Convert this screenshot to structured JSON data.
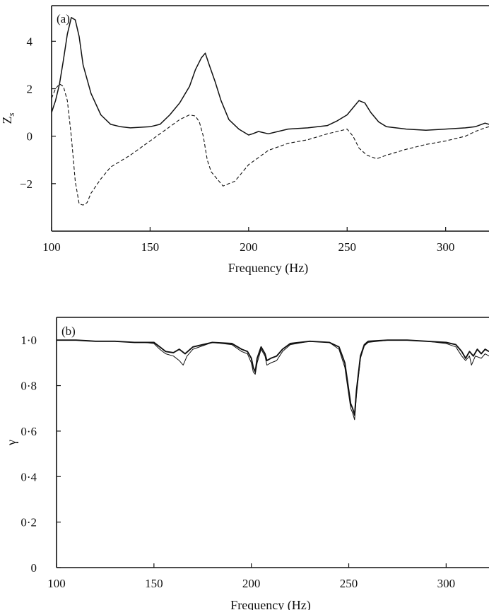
{
  "chart_data": [
    {
      "type": "line",
      "panel_label": "(a)",
      "xlabel": "Frequency (Hz)",
      "ylabel_main": "Z",
      "ylabel_sub": "s",
      "xlim": [
        100,
        322
      ],
      "ylim": [
        -4,
        5.5
      ],
      "xticks": [
        100,
        150,
        200,
        250,
        300
      ],
      "xtick_labels": [
        "100",
        "150",
        "200",
        "250",
        "300"
      ],
      "yticks": [
        -2,
        0,
        2,
        4
      ],
      "ytick_labels": [
        "−2",
        "0",
        "2",
        "4"
      ],
      "grid": false,
      "series": [
        {
          "style": "solid",
          "x": [
            100,
            102,
            104,
            106,
            108,
            110,
            112,
            114,
            116,
            120,
            125,
            130,
            135,
            140,
            150,
            155,
            160,
            165,
            170,
            173,
            176,
            178,
            180,
            183,
            186,
            190,
            195,
            200,
            202,
            205,
            210,
            220,
            230,
            240,
            245,
            250,
            253,
            256,
            259,
            262,
            266,
            270,
            280,
            290,
            300,
            310,
            315,
            320,
            322
          ],
          "y": [
            1.0,
            1.5,
            2.2,
            3.2,
            4.3,
            5.0,
            4.9,
            4.2,
            3.0,
            1.8,
            0.9,
            0.5,
            0.4,
            0.35,
            0.4,
            0.5,
            0.9,
            1.4,
            2.1,
            2.8,
            3.3,
            3.5,
            3.0,
            2.3,
            1.5,
            0.7,
            0.3,
            0.05,
            0.1,
            0.2,
            0.1,
            0.3,
            0.35,
            0.45,
            0.65,
            0.9,
            1.2,
            1.5,
            1.4,
            1.0,
            0.6,
            0.4,
            0.3,
            0.25,
            0.3,
            0.35,
            0.4,
            0.55,
            0.5
          ]
        },
        {
          "style": "dashed",
          "x": [
            100,
            102,
            104,
            106,
            108,
            110,
            112,
            114,
            116,
            118,
            120,
            125,
            130,
            140,
            150,
            160,
            165,
            170,
            173,
            175,
            177,
            179,
            181,
            184,
            187,
            190,
            193,
            196,
            200,
            205,
            210,
            220,
            230,
            240,
            245,
            250,
            253,
            256,
            260,
            265,
            270,
            280,
            290,
            300,
            310,
            315,
            320,
            322
          ],
          "y": [
            1.6,
            2.0,
            2.2,
            2.1,
            1.5,
            0.0,
            -1.9,
            -2.85,
            -2.9,
            -2.8,
            -2.4,
            -1.8,
            -1.3,
            -0.8,
            -0.2,
            0.4,
            0.7,
            0.9,
            0.85,
            0.6,
            0.0,
            -1.0,
            -1.5,
            -1.8,
            -2.1,
            -2.0,
            -1.9,
            -1.6,
            -1.2,
            -0.9,
            -0.6,
            -0.3,
            -0.15,
            0.1,
            0.2,
            0.3,
            0.0,
            -0.5,
            -0.8,
            -0.95,
            -0.8,
            -0.55,
            -0.35,
            -0.2,
            0.0,
            0.2,
            0.35,
            0.4
          ]
        }
      ]
    },
    {
      "type": "line",
      "panel_label": "(b)",
      "xlabel": "Frequency (Hz)",
      "ylabel": "γ",
      "xlim": [
        100,
        322
      ],
      "ylim": [
        0,
        1.1
      ],
      "xticks": [
        100,
        150,
        200,
        250,
        300
      ],
      "xtick_labels": [
        "100",
        "150",
        "200",
        "250",
        "300"
      ],
      "yticks": [
        0,
        0.2,
        0.4,
        0.6,
        0.8,
        1.0
      ],
      "ytick_labels": [
        "0",
        "0·2",
        "0·4",
        "0·6",
        "0·8",
        "1·0"
      ],
      "grid": false,
      "series": [
        {
          "style": "solid-thick",
          "x": [
            100,
            110,
            120,
            130,
            140,
            145,
            150,
            153,
            156,
            160,
            163,
            166,
            170,
            180,
            190,
            195,
            198,
            200,
            201,
            202,
            203,
            205,
            207,
            208,
            210,
            213,
            216,
            220,
            230,
            240,
            245,
            248,
            250,
            251,
            252,
            253,
            254,
            256,
            258,
            260,
            270,
            280,
            290,
            300,
            305,
            308,
            310,
            312,
            314,
            316,
            318,
            320,
            322
          ],
          "y": [
            1.0,
            1.0,
            0.995,
            0.995,
            0.99,
            0.99,
            0.99,
            0.97,
            0.95,
            0.945,
            0.96,
            0.94,
            0.97,
            0.99,
            0.985,
            0.96,
            0.95,
            0.92,
            0.88,
            0.86,
            0.92,
            0.97,
            0.94,
            0.91,
            0.92,
            0.93,
            0.96,
            0.985,
            0.995,
            0.99,
            0.97,
            0.9,
            0.78,
            0.72,
            0.7,
            0.67,
            0.78,
            0.93,
            0.98,
            0.995,
            1.0,
            1.0,
            0.995,
            0.99,
            0.98,
            0.95,
            0.92,
            0.95,
            0.93,
            0.96,
            0.94,
            0.96,
            0.95
          ]
        },
        {
          "style": "solid-thin",
          "x": [
            100,
            110,
            120,
            130,
            140,
            145,
            150,
            153,
            156,
            160,
            163,
            165,
            167,
            170,
            180,
            190,
            195,
            198,
            200,
            201,
            202,
            203,
            205,
            207,
            208,
            210,
            213,
            216,
            220,
            230,
            240,
            245,
            248,
            250,
            251,
            252,
            253,
            254,
            256,
            258,
            260,
            270,
            280,
            290,
            300,
            305,
            308,
            310,
            312,
            313,
            315,
            318,
            320,
            322
          ],
          "y": [
            1.0,
            1.0,
            0.995,
            0.995,
            0.99,
            0.99,
            0.985,
            0.96,
            0.94,
            0.93,
            0.91,
            0.89,
            0.93,
            0.96,
            0.99,
            0.98,
            0.95,
            0.94,
            0.9,
            0.86,
            0.85,
            0.9,
            0.96,
            0.93,
            0.89,
            0.9,
            0.91,
            0.95,
            0.98,
            0.995,
            0.99,
            0.96,
            0.88,
            0.76,
            0.7,
            0.68,
            0.65,
            0.76,
            0.92,
            0.975,
            0.99,
            1.0,
            1.0,
            0.995,
            0.985,
            0.97,
            0.93,
            0.91,
            0.93,
            0.89,
            0.93,
            0.92,
            0.94,
            0.93
          ]
        }
      ]
    }
  ]
}
